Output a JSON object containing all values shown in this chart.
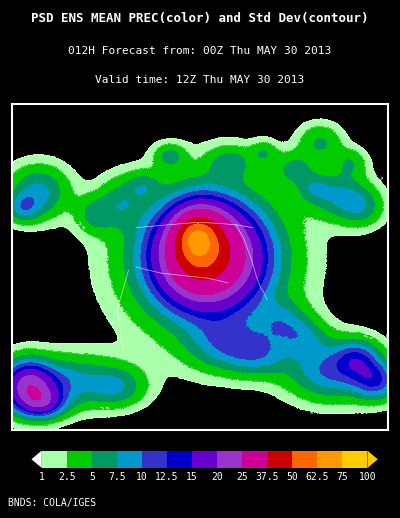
{
  "title_line1": "PSD ENS MEAN PREC(color) and Std Dev(contour)",
  "title_line2": "012H Forecast from: 00Z Thu MAY 30 2013",
  "title_line3": "Valid time: 12Z Thu MAY 30 2013",
  "footer": "BNDS: COLA/IGES",
  "background_color": "#000000",
  "map_bg_color": "#000000",
  "border_color": "#ffffff",
  "colorbar_colors": [
    "#aaffaa",
    "#00cc00",
    "#009966",
    "#0099cc",
    "#3333cc",
    "#0000cc",
    "#6600cc",
    "#9933cc",
    "#cc0099",
    "#cc0000",
    "#ff6600",
    "#ff9900",
    "#ffcc00"
  ],
  "colorbar_labels": [
    "1",
    "2.5",
    "5",
    "7.5",
    "10",
    "12.5",
    "15",
    "20",
    "25",
    "37.5",
    "50",
    "62.5",
    "75",
    "100"
  ],
  "precip_levels": [
    0,
    1,
    2.5,
    5,
    7.5,
    10,
    12.5,
    15,
    20,
    25,
    37.5,
    50,
    62.5,
    75,
    100
  ],
  "title_color": "#ffffff",
  "title_fontsize": 9,
  "subtitle_fontsize": 8,
  "colorbar_label_fontsize": 7,
  "footer_fontsize": 7
}
